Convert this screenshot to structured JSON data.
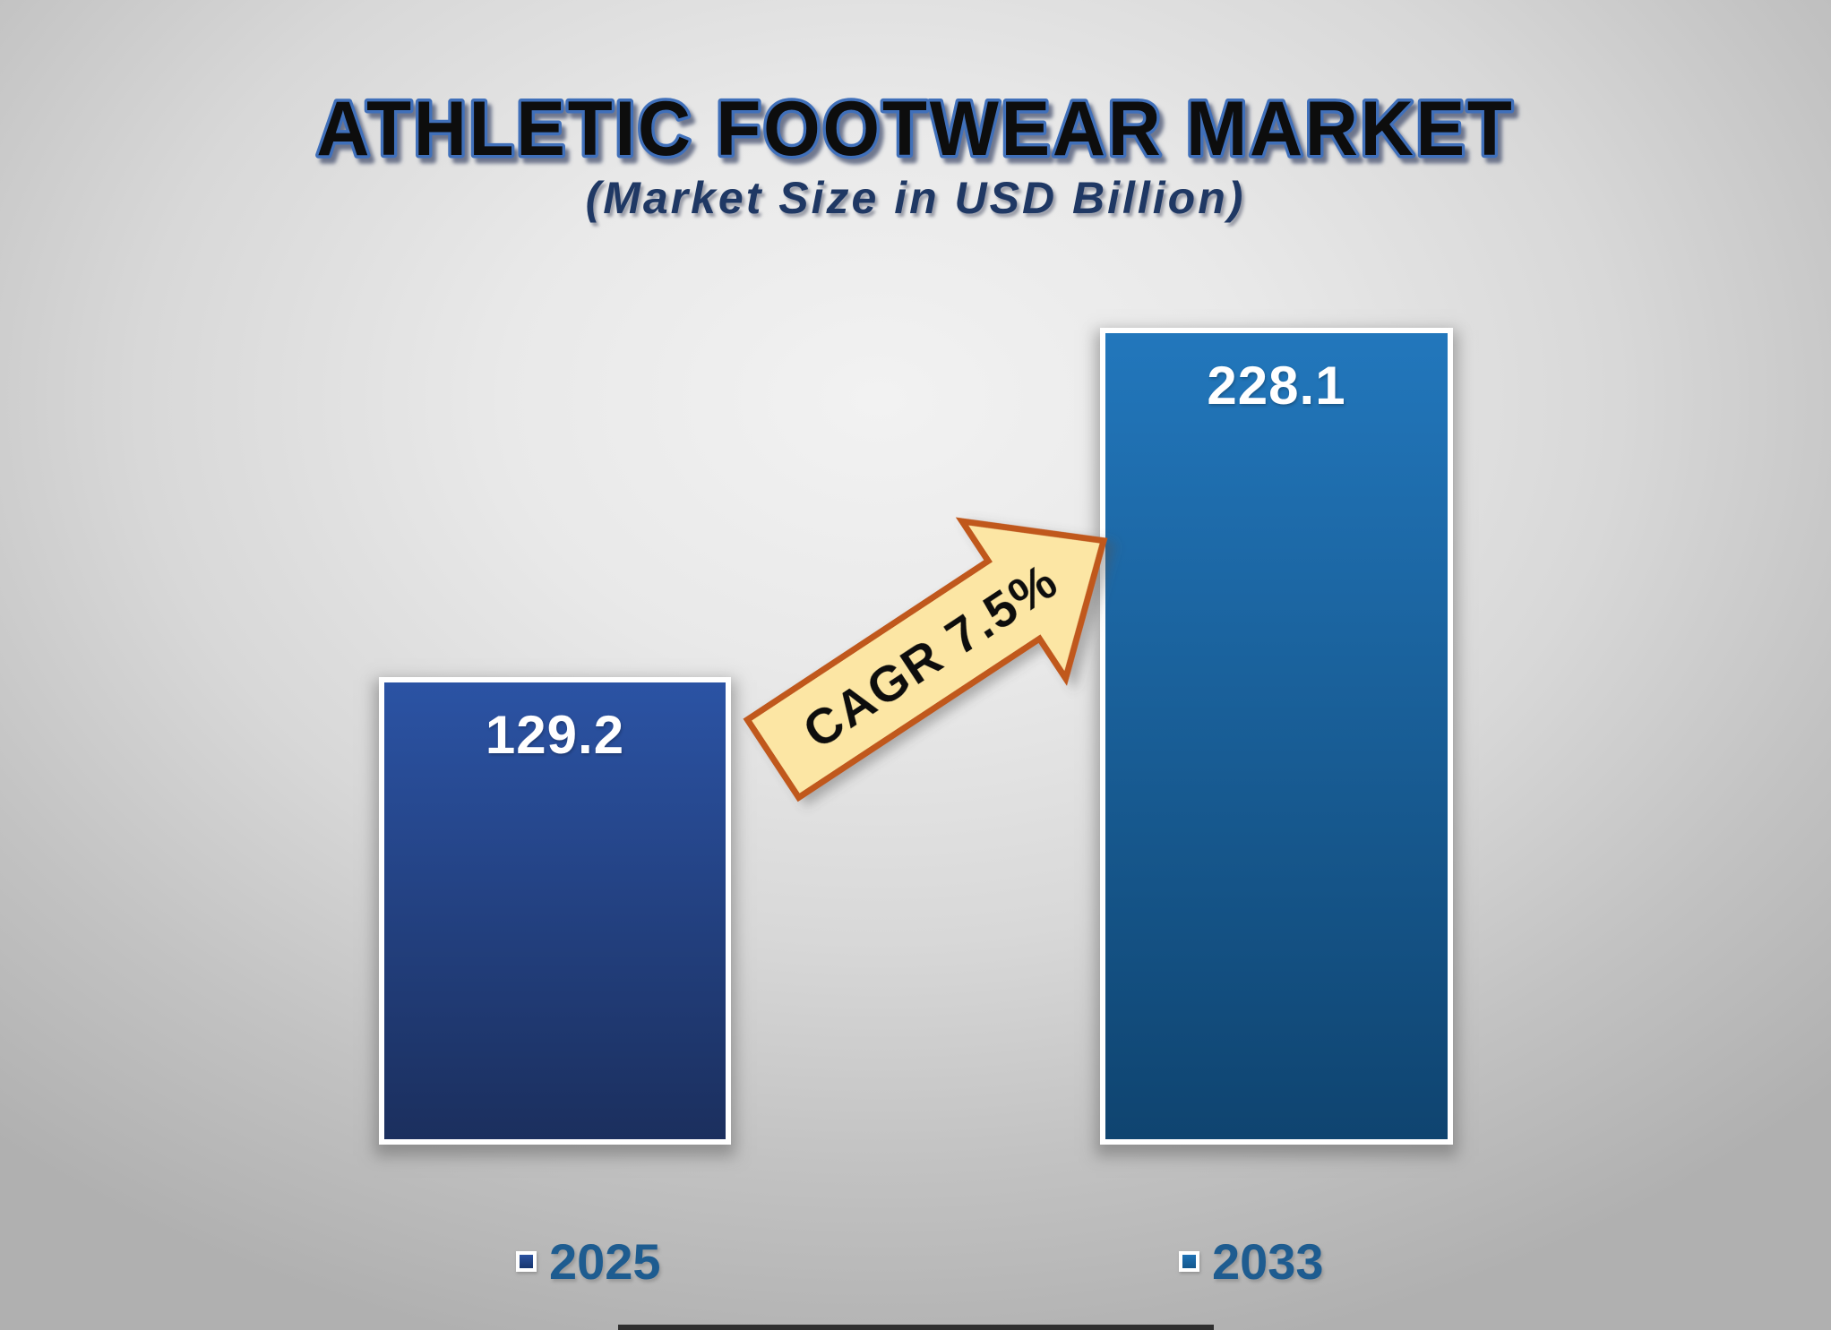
{
  "header": {
    "title": "ATHLETIC FOOTWEAR MARKET",
    "subtitle": "(Market Size in USD Billion)"
  },
  "chart_data": {
    "type": "bar",
    "title": "ATHLETIC FOOTWEAR MARKET",
    "subtitle": "(Market Size in USD Billion)",
    "unit": "USD Billion",
    "categories": [
      "2025",
      "2033"
    ],
    "values": [
      129.2,
      228.1
    ],
    "value_labels": [
      "129.2",
      "228.1"
    ],
    "annotation": "CAGR 7.5%",
    "legend": [
      "2025",
      "2033"
    ],
    "legend_position": "bottom",
    "ylim": [
      0,
      240
    ],
    "grid": false,
    "axes_shown": false
  },
  "arrow": {
    "label": "CAGR 7.5%"
  },
  "colors": {
    "bar_2025_top": "#2B53A4",
    "bar_2025_bottom": "#1B2F5E",
    "bar_2033_top": "#2277BC",
    "bar_2033_bottom": "#0F4470",
    "arrow_fill": "#FCE6A4",
    "arrow_stroke": "#C0591B",
    "title_fill": "#0B0B0B",
    "title_stroke": "#3F6FBA",
    "subtitle_color": "#1F3864",
    "legend_text": "#1E5C90",
    "value_text": "#FFFFFF"
  }
}
